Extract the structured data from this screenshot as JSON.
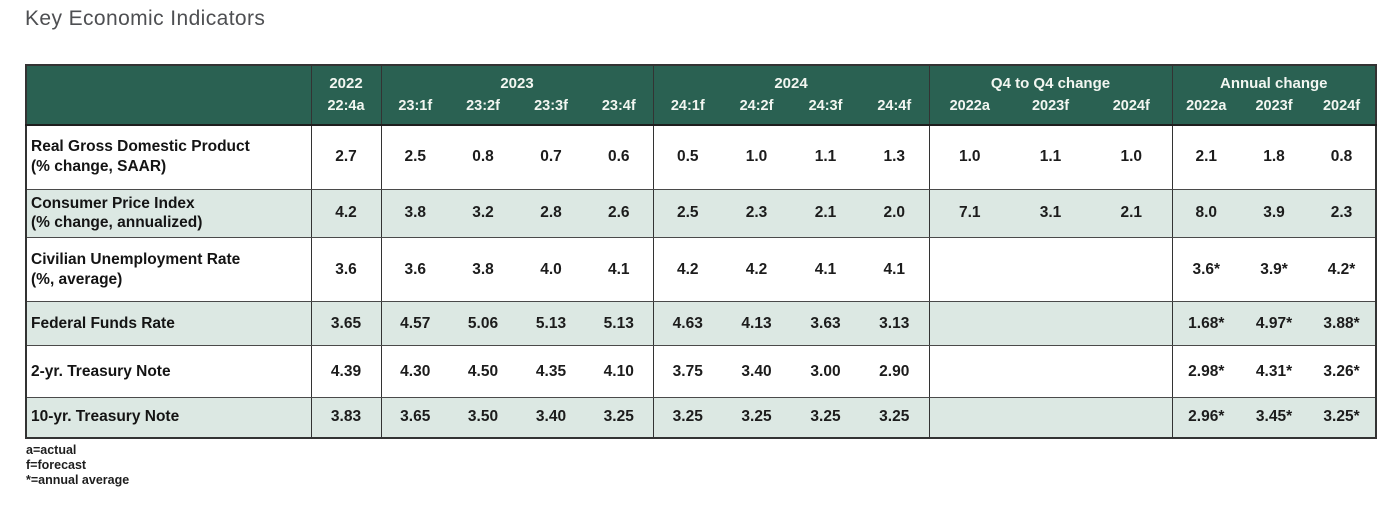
{
  "title": "Key Economic Indicators",
  "colors": {
    "header_bg": "#2A6152",
    "header_text": "#F2F6F1",
    "alt_row_bg": "#DCE8E3",
    "border_dark": "#333333",
    "title_text": "#4E4F52"
  },
  "table": {
    "corner_label": "",
    "column_groups": [
      {
        "label": "2022",
        "subcolumns": [
          "22:4a"
        ]
      },
      {
        "label": "2023",
        "subcolumns": [
          "23:1f",
          "23:2f",
          "23:3f",
          "23:4f"
        ]
      },
      {
        "label": "2024",
        "subcolumns": [
          "24:1f",
          "24:2f",
          "24:3f",
          "24:4f"
        ]
      },
      {
        "label": "Q4 to Q4 change",
        "subcolumns": [
          "2022a",
          "2023f",
          "2024f"
        ]
      },
      {
        "label": "Annual change",
        "subcolumns": [
          "2022a",
          "2023f",
          "2024f"
        ]
      }
    ],
    "rows": [
      {
        "label": "Real Gross Domestic Product",
        "sublabel": "(% change, SAAR)",
        "values": [
          "2.7",
          "2.5",
          "0.8",
          "0.7",
          "0.6",
          "0.5",
          "1.0",
          "1.1",
          "1.3",
          "1.0",
          "1.1",
          "1.0",
          "2.1",
          "1.8",
          "0.8"
        ]
      },
      {
        "label": "Consumer Price Index",
        "sublabel": "(% change, annualized)",
        "values": [
          "4.2",
          "3.8",
          "3.2",
          "2.8",
          "2.6",
          "2.5",
          "2.3",
          "2.1",
          "2.0",
          "7.1",
          "3.1",
          "2.1",
          "8.0",
          "3.9",
          "2.3"
        ]
      },
      {
        "label": "Civilian Unemployment Rate",
        "sublabel": "(%, average)",
        "values": [
          "3.6",
          "3.6",
          "3.8",
          "4.0",
          "4.1",
          "4.2",
          "4.2",
          "4.1",
          "4.1",
          "",
          "",
          "",
          "3.6*",
          "3.9*",
          "4.2*"
        ]
      },
      {
        "label": "Federal Funds Rate",
        "sublabel": "",
        "values": [
          "3.65",
          "4.57",
          "5.06",
          "5.13",
          "5.13",
          "4.63",
          "4.13",
          "3.63",
          "3.13",
          "",
          "",
          "",
          "1.68*",
          "4.97*",
          "3.88*"
        ]
      },
      {
        "label": "2-yr. Treasury Note",
        "sublabel": "",
        "values": [
          "4.39",
          "4.30",
          "4.50",
          "4.35",
          "4.10",
          "3.75",
          "3.40",
          "3.00",
          "2.90",
          "",
          "",
          "",
          "2.98*",
          "4.31*",
          "3.26*"
        ]
      },
      {
        "label": "10-yr. Treasury Note",
        "sublabel": "",
        "values": [
          "3.83",
          "3.65",
          "3.50",
          "3.40",
          "3.25",
          "3.25",
          "3.25",
          "3.25",
          "3.25",
          "",
          "",
          "",
          "2.96*",
          "3.45*",
          "3.25*"
        ]
      }
    ]
  },
  "footnotes": [
    "a=actual",
    "f=forecast",
    "*=annual average"
  ]
}
